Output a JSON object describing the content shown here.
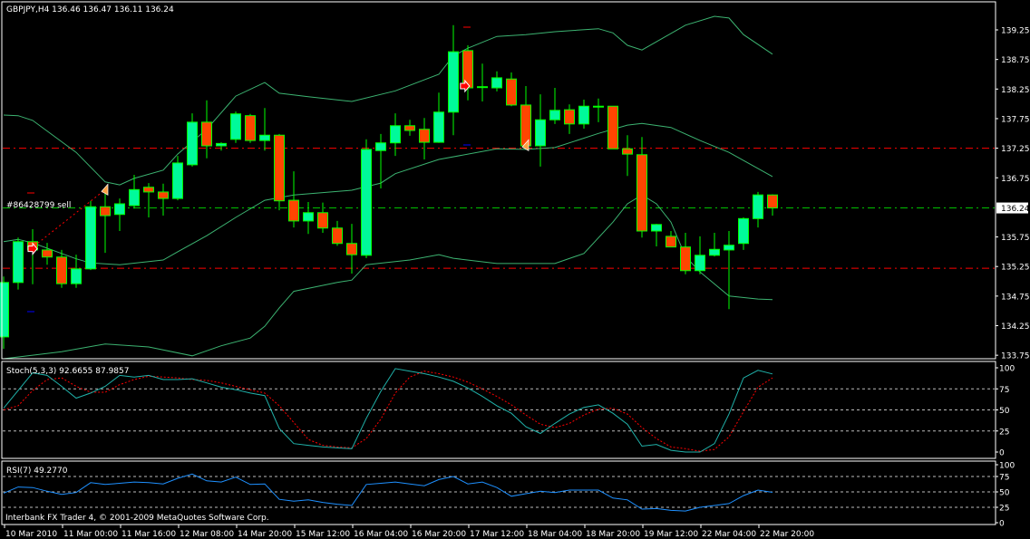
{
  "header": {
    "symbol_info": "GBPJPY,H4  136.46 136.47 136.11 136.24"
  },
  "order_label": "#86428799 sell",
  "copyright": "Interbank FX Trader 4, © 2001-2009 MetaQuotes Software Corp.",
  "colors": {
    "background": "#000000",
    "bull_body": "#00FA9A",
    "bear_body": "#FF4500",
    "candle_outline": "#00FF00",
    "bands": "#3CB371",
    "stoch_main": "#20B2AA",
    "stoch_signal": "#FF0000",
    "rsi": "#1E90FF",
    "level_lines": "#FF0000",
    "bid_line": "#00C000"
  },
  "chart_data": [
    {
      "type": "candlestick",
      "title": "GBPJPY,H4",
      "ohlc_last": {
        "open": 136.46,
        "high": 136.47,
        "low": 136.11,
        "close": 136.24
      },
      "ylim": [
        133.7,
        139.7
      ],
      "y_ticks": [
        "139.25",
        "138.75",
        "138.25",
        "137.75",
        "137.25",
        "136.75",
        "135.75",
        "135.25",
        "134.75",
        "134.25",
        "133.75"
      ],
      "current_price_label": "136.24",
      "x_tick_labels": [
        {
          "index": 0,
          "label": "10 Mar 2010"
        },
        {
          "index": 4,
          "label": "11 Mar 00:00"
        },
        {
          "index": 8,
          "label": "11 Mar 16:00"
        },
        {
          "index": 12,
          "label": "12 Mar 08:00"
        },
        {
          "index": 16,
          "label": "14 Mar 20:00"
        },
        {
          "index": 20,
          "label": "15 Mar 12:00"
        },
        {
          "index": 24,
          "label": "16 Mar 04:00"
        },
        {
          "index": 28,
          "label": "16 Mar 20:00"
        },
        {
          "index": 32,
          "label": "17 Mar 12:00"
        },
        {
          "index": 36,
          "label": "18 Mar 04:00"
        },
        {
          "index": 40,
          "label": "18 Mar 20:00"
        },
        {
          "index": 44,
          "label": "19 Mar 12:00"
        },
        {
          "index": 48,
          "label": "22 Mar 04:00"
        },
        {
          "index": 52,
          "label": "22 Mar 20:00"
        }
      ],
      "candles": [
        [
          134.06,
          135.08,
          133.86,
          134.98
        ],
        [
          134.98,
          135.74,
          134.86,
          135.67
        ],
        [
          135.67,
          135.88,
          134.95,
          135.53
        ],
        [
          135.53,
          135.65,
          135.28,
          135.41
        ],
        [
          135.41,
          135.53,
          134.89,
          134.96
        ],
        [
          134.96,
          135.45,
          134.89,
          135.21
        ],
        [
          135.21,
          136.36,
          135.19,
          136.26
        ],
        [
          136.26,
          136.48,
          135.48,
          136.11
        ],
        [
          136.13,
          136.4,
          135.85,
          136.31
        ],
        [
          136.28,
          136.8,
          136.23,
          136.55
        ],
        [
          136.59,
          136.66,
          136.08,
          136.51
        ],
        [
          136.51,
          136.65,
          136.11,
          136.4
        ],
        [
          136.4,
          137.12,
          136.37,
          137.0
        ],
        [
          136.97,
          137.84,
          136.94,
          137.69
        ],
        [
          137.69,
          138.06,
          137.08,
          137.29
        ],
        [
          137.29,
          137.35,
          137.21,
          137.33
        ],
        [
          137.4,
          137.87,
          137.34,
          137.83
        ],
        [
          137.8,
          137.83,
          137.34,
          137.38
        ],
        [
          137.38,
          137.93,
          137.21,
          137.47
        ],
        [
          137.47,
          137.49,
          136.2,
          136.36
        ],
        [
          136.37,
          136.86,
          135.91,
          136.02
        ],
        [
          136.02,
          136.34,
          135.8,
          136.16
        ],
        [
          136.16,
          136.33,
          135.82,
          135.9
        ],
        [
          135.9,
          136.02,
          135.6,
          135.64
        ],
        [
          135.64,
          135.97,
          135.13,
          135.45
        ],
        [
          135.44,
          137.4,
          135.39,
          137.23
        ],
        [
          137.21,
          137.49,
          136.57,
          137.34
        ],
        [
          137.34,
          137.84,
          137.12,
          137.63
        ],
        [
          137.63,
          137.73,
          137.46,
          137.55
        ],
        [
          137.57,
          137.76,
          137.06,
          137.35
        ],
        [
          137.35,
          138.19,
          137.34,
          137.86
        ],
        [
          137.86,
          139.33,
          137.47,
          138.88
        ],
        [
          138.9,
          138.99,
          138.06,
          138.27
        ],
        [
          138.29,
          138.68,
          138.04,
          138.29
        ],
        [
          138.27,
          138.55,
          138.21,
          138.44
        ],
        [
          138.42,
          138.53,
          137.96,
          137.98
        ],
        [
          137.98,
          138.3,
          137.23,
          137.29
        ],
        [
          137.29,
          138.16,
          136.94,
          137.73
        ],
        [
          137.73,
          138.27,
          137.66,
          137.89
        ],
        [
          137.9,
          137.99,
          137.49,
          137.66
        ],
        [
          137.66,
          138.07,
          137.58,
          137.96
        ],
        [
          137.96,
          138.09,
          137.69,
          137.96
        ],
        [
          137.96,
          137.96,
          137.24,
          137.24
        ],
        [
          137.24,
          137.47,
          136.78,
          137.15
        ],
        [
          137.14,
          137.44,
          135.74,
          135.85
        ],
        [
          135.85,
          135.97,
          135.59,
          135.96
        ],
        [
          135.76,
          135.85,
          135.58,
          135.58
        ],
        [
          135.58,
          135.82,
          135.12,
          135.18
        ],
        [
          135.18,
          135.76,
          135.12,
          135.44
        ],
        [
          135.44,
          135.82,
          135.42,
          135.54
        ],
        [
          135.53,
          135.85,
          134.53,
          135.61
        ],
        [
          135.64,
          136.08,
          135.53,
          136.06
        ],
        [
          136.06,
          136.51,
          135.91,
          136.46
        ],
        [
          136.46,
          136.47,
          136.11,
          136.24
        ]
      ],
      "bollinger_bands": {
        "upper": [
          [
            0,
            137.81
          ],
          [
            1,
            137.8
          ],
          [
            2,
            137.72
          ],
          [
            5,
            137.18
          ],
          [
            7,
            136.68
          ],
          [
            8,
            136.63
          ],
          [
            9,
            136.74
          ],
          [
            11,
            136.88
          ],
          [
            12,
            137.15
          ],
          [
            14,
            137.57
          ],
          [
            16,
            138.13
          ],
          [
            18,
            138.36
          ],
          [
            19,
            138.18
          ],
          [
            21,
            138.12
          ],
          [
            24,
            138.04
          ],
          [
            27,
            138.22
          ],
          [
            30,
            138.5
          ],
          [
            31,
            138.81
          ],
          [
            32,
            138.94
          ],
          [
            34,
            139.14
          ],
          [
            36,
            139.17
          ],
          [
            38,
            139.22
          ],
          [
            41,
            139.27
          ],
          [
            42,
            139.2
          ],
          [
            43,
            138.99
          ],
          [
            44,
            138.91
          ],
          [
            45,
            139.05
          ],
          [
            47,
            139.33
          ],
          [
            49,
            139.48
          ],
          [
            50,
            139.45
          ],
          [
            51,
            139.17
          ],
          [
            53,
            138.84
          ]
        ],
        "middle": [
          [
            0,
            135.67
          ],
          [
            1,
            135.71
          ],
          [
            2,
            135.65
          ],
          [
            5,
            135.38
          ],
          [
            6,
            135.31
          ],
          [
            8,
            135.28
          ],
          [
            11,
            135.36
          ],
          [
            12,
            135.5
          ],
          [
            14,
            135.77
          ],
          [
            16,
            136.08
          ],
          [
            18,
            136.37
          ],
          [
            20,
            136.46
          ],
          [
            24,
            136.54
          ],
          [
            26,
            136.66
          ],
          [
            27,
            136.82
          ],
          [
            30,
            137.06
          ],
          [
            34,
            137.24
          ],
          [
            36,
            137.23
          ],
          [
            38,
            137.26
          ],
          [
            41,
            137.5
          ],
          [
            43,
            137.64
          ],
          [
            44,
            137.67
          ],
          [
            46,
            137.6
          ],
          [
            48,
            137.38
          ],
          [
            50,
            137.18
          ],
          [
            53,
            136.77
          ]
        ],
        "lower": [
          [
            0,
            133.63
          ],
          [
            4,
            133.81
          ],
          [
            7,
            133.94
          ],
          [
            10,
            133.89
          ],
          [
            13,
            133.74
          ],
          [
            15,
            133.91
          ],
          [
            17,
            134.04
          ],
          [
            18,
            134.24
          ],
          [
            19,
            134.55
          ],
          [
            20,
            134.83
          ],
          [
            23,
            134.98
          ],
          [
            24,
            135.02
          ],
          [
            25,
            135.28
          ],
          [
            28,
            135.36
          ],
          [
            30,
            135.45
          ],
          [
            31,
            135.39
          ],
          [
            34,
            135.3
          ],
          [
            38,
            135.3
          ],
          [
            40,
            135.47
          ],
          [
            42,
            136.0
          ],
          [
            43,
            136.31
          ],
          [
            44,
            136.46
          ],
          [
            45,
            136.31
          ],
          [
            46,
            136.0
          ],
          [
            47,
            135.42
          ],
          [
            48,
            135.16
          ],
          [
            50,
            134.75
          ],
          [
            52,
            134.7
          ],
          [
            53,
            134.69
          ]
        ]
      },
      "horizontal_lines": [
        {
          "price": 137.25,
          "style": "dash-dot",
          "color": "#FF0000"
        },
        {
          "price": 135.22,
          "style": "dash-dot",
          "color": "#FF0000"
        },
        {
          "price": 136.24,
          "style": "dash-dot",
          "color": "#00C000",
          "label": "#86428799 sell"
        }
      ],
      "trade_markers": [
        {
          "type": "sell-entry-arrow",
          "index": 2,
          "price": 135.55
        },
        {
          "type": "close-triangle",
          "index": 7,
          "price": 136.55
        },
        {
          "type": "sell-entry-arrow",
          "index": 31.8,
          "price": 138.3
        },
        {
          "type": "close-triangle",
          "index": 36,
          "price": 137.3
        }
      ]
    },
    {
      "type": "line",
      "title": "Stoch(5,3,3) 92.6655 87.9857",
      "ylim": [
        0,
        100
      ],
      "levels": [
        25,
        50,
        75
      ],
      "y_ticks": [
        "100",
        "75",
        "50",
        "25",
        "0"
      ],
      "series": [
        {
          "name": "main",
          "values": [
            52,
            73,
            94,
            91,
            78,
            64,
            70,
            78,
            91,
            89,
            91,
            86,
            86,
            87,
            82,
            77,
            74,
            70,
            67,
            28,
            10,
            8,
            6,
            5,
            4,
            40,
            72,
            99,
            96,
            93,
            89,
            84,
            76,
            66,
            55,
            46,
            30,
            22,
            34,
            45,
            53,
            56,
            46,
            33,
            7,
            9,
            2,
            0,
            0,
            10,
            45,
            88,
            97,
            92.6655
          ]
        },
        {
          "name": "signal",
          "values": [
            50,
            55,
            73,
            86,
            88,
            78,
            71,
            71,
            80,
            86,
            90,
            89,
            88,
            86,
            85,
            82,
            78,
            74,
            70,
            55,
            35,
            15,
            8,
            6,
            5,
            16,
            39,
            70,
            89,
            96,
            93,
            89,
            83,
            75,
            66,
            56,
            44,
            33,
            29,
            34,
            44,
            51,
            52,
            45,
            29,
            16,
            6,
            4,
            1,
            3,
            18,
            48,
            77,
            87.9857
          ]
        }
      ]
    },
    {
      "type": "line",
      "title": "RSI(7) 49.2770",
      "ylim": [
        0,
        100
      ],
      "levels": [
        25,
        50,
        75
      ],
      "y_ticks": [
        "100",
        "75",
        "50",
        "25",
        "0"
      ],
      "series": [
        {
          "name": "rsi",
          "values": [
            48,
            58,
            57,
            51,
            46,
            49,
            65,
            62,
            64,
            66,
            65,
            63,
            72,
            79,
            68,
            66,
            74,
            62,
            63,
            38,
            35,
            37,
            33,
            30,
            28,
            62,
            64,
            66,
            63,
            60,
            70,
            75,
            63,
            66,
            57,
            43,
            47,
            51,
            49,
            53,
            53,
            53,
            40,
            37,
            22,
            23,
            20,
            19,
            25,
            28,
            31,
            44,
            53,
            49.277
          ]
        }
      ]
    }
  ]
}
